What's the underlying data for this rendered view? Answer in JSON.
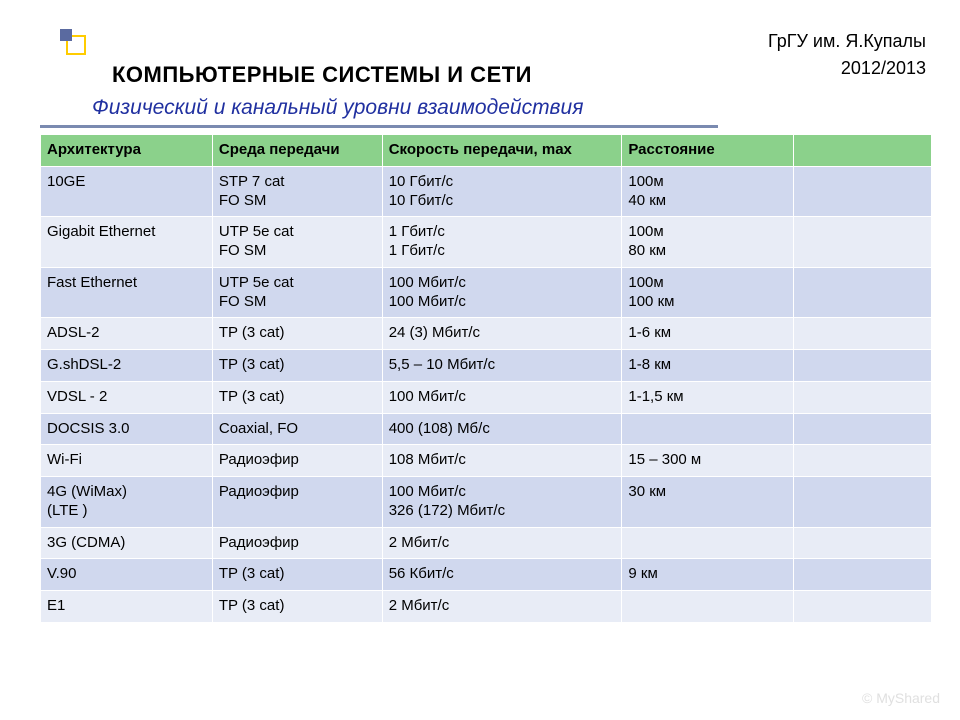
{
  "header": {
    "institution": "ГрГУ им. Я.Купалы",
    "year": "2012/2013",
    "title_main": "КОМПЬЮТЕРНЫЕ СИСТЕМЫ  И СЕТИ",
    "title_sub": "Физический и канальный уровни взаимодействия"
  },
  "table": {
    "header_bg": "#8bd18b",
    "row_colors_alt": [
      "#d0d8ee",
      "#e8ecf6"
    ],
    "text_color": "#000000",
    "font_size": 15,
    "columns": [
      "Архитектура",
      "Среда передачи",
      "Скорость передачи, max",
      "Расстояние",
      ""
    ],
    "rows": [
      [
        "10GE",
        "STP 7 cat\nFO SM",
        "10 Гбит/с\n10 Гбит/с",
        "100м\n40 км",
        ""
      ],
      [
        "Gigabit Ethernet",
        "UTP 5e cat\nFO SM",
        "1 Гбит/с\n1 Гбит/с",
        "100м\n80 км",
        ""
      ],
      [
        "Fast Ethernet",
        "UTP 5e cat\nFO SM",
        "100 Мбит/с\n100 Мбит/с",
        "100м\n100 км",
        ""
      ],
      [
        "ADSL-2",
        "TP (3 cat)",
        "24 (3) Мбит/с",
        "1-6 км",
        ""
      ],
      [
        "G.shDSL-2",
        "TP (3 cat)",
        "5,5 – 10 Мбит/с",
        "1-8 км",
        ""
      ],
      [
        "VDSL - 2",
        "TP (3 cat)",
        "100 Мбит/с",
        "1-1,5 км",
        ""
      ],
      [
        "DOCSIS 3.0",
        "Coaxial, FO",
        "400 (108) Мб/с",
        "",
        ""
      ],
      [
        "Wi-Fi",
        "Радиоэфир",
        "108 Мбит/с",
        "15 – 300 м",
        ""
      ],
      [
        "4G (WiMax)\n    (LTE )",
        "Радиоэфир",
        "100 Мбит/с\n326 (172) Мбит/с",
        "30 км",
        ""
      ],
      [
        "3G (CDMA)",
        "Радиоэфир",
        "2 Мбит/с",
        "",
        ""
      ],
      [
        "V.90",
        "TP (3 cat)",
        "56 Кбит/с",
        "9 км",
        ""
      ],
      [
        "E1",
        "TP (3 cat)",
        "2 Мбит/с",
        "",
        ""
      ]
    ]
  },
  "watermark": "© MyShared"
}
